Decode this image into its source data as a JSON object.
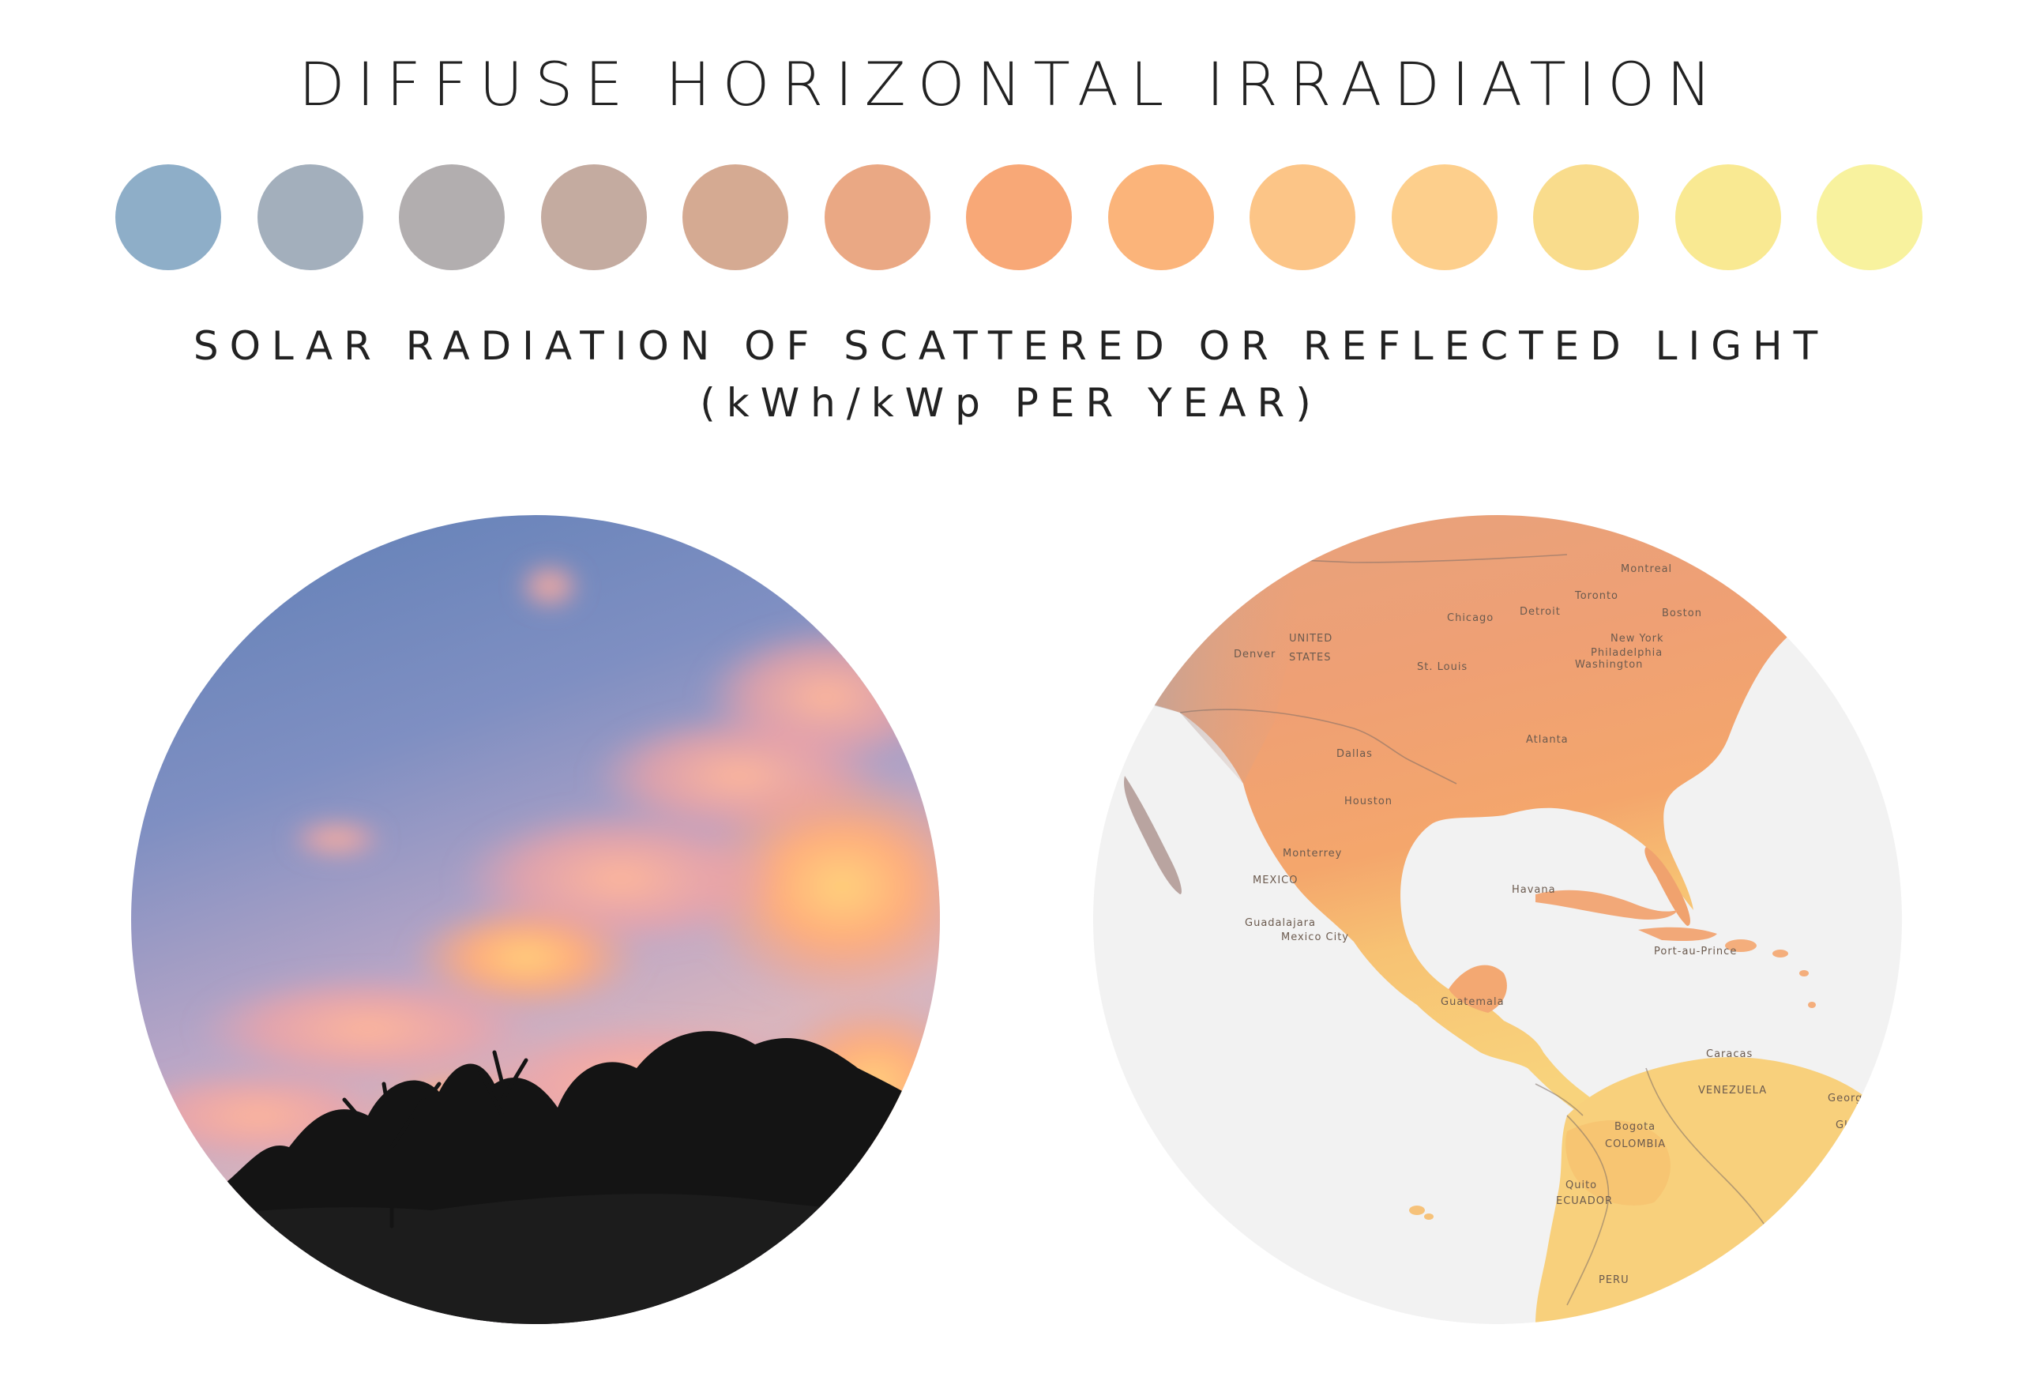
{
  "title": "DIFFUSE HORIZONTAL IRRADIATION",
  "subtitle": {
    "line1": "SOLAR RADIATION OF SCATTERED OR REFLECTED LIGHT",
    "line2": "(kWh/kWp PER YEAR)"
  },
  "swatches": [
    "#8eaec8",
    "#a3afbc",
    "#b2aeaf",
    "#c4aba0",
    "#d5aa92",
    "#eaa884",
    "#f8a877",
    "#fbb47a",
    "#fcc587",
    "#fdcf8c",
    "#f9dc8c",
    "#f9e992",
    "#f8f29e"
  ],
  "map": {
    "labels": {
      "montreal": "Montreal",
      "toronto": "Toronto",
      "boston": "Boston",
      "detroit": "Detroit",
      "chicago": "Chicago",
      "new_york": "New York",
      "philadelphia": "Philadelphia",
      "washington": "Washington",
      "united": "UNITED",
      "states": "STATES",
      "denver": "Denver",
      "st_louis": "St. Louis",
      "atlanta": "Atlanta",
      "dallas": "Dallas",
      "houston": "Houston",
      "monterrey": "Monterrey",
      "mexico": "MEXICO",
      "guadalajara": "Guadalajara",
      "mexico_city": "Mexico City",
      "havana": "Havana",
      "port_au_prince": "Port-au-Prince",
      "guatemala": "Guatemala",
      "caracas": "Caracas",
      "venezuela": "VENEZUELA",
      "bogota": "Bogota",
      "colombia": "COLOMBIA",
      "quito": "Quito",
      "ecuador": "ECUADOR",
      "peru": "PERU",
      "guyana": "GUYANA",
      "georgetown": "Georgetown"
    }
  }
}
